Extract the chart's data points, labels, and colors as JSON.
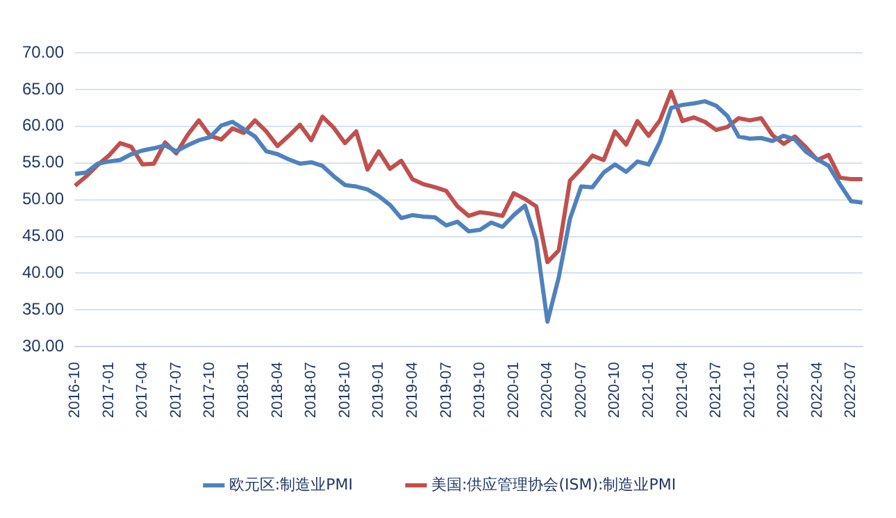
{
  "chart_data": {
    "type": "line",
    "categories": [
      "2016-10",
      null,
      null,
      "2017-01",
      null,
      null,
      "2017-04",
      null,
      null,
      "2017-07",
      null,
      null,
      "2017-10",
      null,
      null,
      "2018-01",
      null,
      null,
      "2018-04",
      null,
      null,
      "2018-07",
      null,
      null,
      "2018-10",
      null,
      null,
      "2019-01",
      null,
      null,
      "2019-04",
      null,
      null,
      "2019-07",
      null,
      null,
      "2019-10",
      null,
      null,
      "2020-01",
      null,
      null,
      "2020-04",
      null,
      null,
      "2020-07",
      null,
      null,
      "2020-10",
      null,
      null,
      "2021-01",
      null,
      null,
      "2021-04",
      null,
      null,
      "2021-07",
      null,
      null,
      "2021-10",
      null,
      null,
      "2022-01",
      null,
      null,
      "2022-04",
      null,
      null,
      "2022-07",
      null
    ],
    "series": [
      {
        "name": "欧元区:制造业PMI",
        "color": "#4f81bd",
        "values": [
          53.5,
          53.7,
          54.9,
          55.2,
          55.4,
          56.2,
          56.7,
          57.0,
          57.4,
          56.6,
          57.4,
          58.1,
          58.5,
          60.1,
          60.6,
          59.6,
          58.6,
          56.6,
          56.2,
          55.5,
          54.9,
          55.1,
          54.6,
          53.2,
          52.0,
          51.8,
          51.4,
          50.5,
          49.3,
          47.5,
          47.9,
          47.7,
          47.6,
          46.5,
          47.0,
          45.7,
          45.9,
          46.9,
          46.3,
          47.9,
          49.2,
          44.5,
          33.4,
          39.4,
          47.4,
          51.8,
          51.7,
          53.7,
          54.8,
          53.8,
          55.2,
          54.8,
          57.9,
          62.5,
          62.9,
          63.1,
          63.4,
          62.8,
          61.4,
          58.6,
          58.3,
          58.4,
          58.0,
          58.7,
          58.2,
          56.5,
          55.5,
          54.6,
          52.1,
          49.8,
          49.6
        ]
      },
      {
        "name": "美国:供应管理协会(ISM):制造业PMI",
        "color": "#c0504d",
        "values": [
          51.9,
          53.2,
          54.7,
          56.0,
          57.7,
          57.2,
          54.8,
          54.9,
          57.8,
          56.3,
          58.8,
          60.8,
          58.7,
          58.2,
          59.7,
          59.1,
          60.8,
          59.3,
          57.3,
          58.7,
          60.2,
          58.1,
          61.3,
          59.8,
          57.7,
          59.3,
          54.1,
          56.6,
          54.2,
          55.3,
          52.8,
          52.1,
          51.7,
          51.2,
          49.1,
          47.8,
          48.3,
          48.1,
          47.8,
          50.9,
          50.1,
          49.1,
          41.5,
          43.1,
          52.6,
          54.2,
          56.0,
          55.4,
          59.3,
          57.5,
          60.7,
          58.7,
          60.8,
          64.7,
          60.7,
          61.2,
          60.6,
          59.5,
          59.9,
          61.1,
          60.8,
          61.1,
          58.8,
          57.6,
          58.6,
          57.1,
          55.4,
          56.1,
          53.0,
          52.8,
          52.8
        ]
      }
    ],
    "ylim": [
      30,
      70
    ],
    "yticks": [
      {
        "value": 30,
        "label": "30.00"
      },
      {
        "value": 35,
        "label": "35.00"
      },
      {
        "value": 40,
        "label": "40.00"
      },
      {
        "value": 45,
        "label": "45.00"
      },
      {
        "value": 50,
        "label": "50.00"
      },
      {
        "value": 55,
        "label": "55.00"
      },
      {
        "value": 60,
        "label": "60.00"
      },
      {
        "value": 65,
        "label": "65.00"
      },
      {
        "value": 70,
        "label": "70.00"
      }
    ],
    "grid": "y",
    "legend": "bottom",
    "marker": "none",
    "line_style": "solid"
  }
}
